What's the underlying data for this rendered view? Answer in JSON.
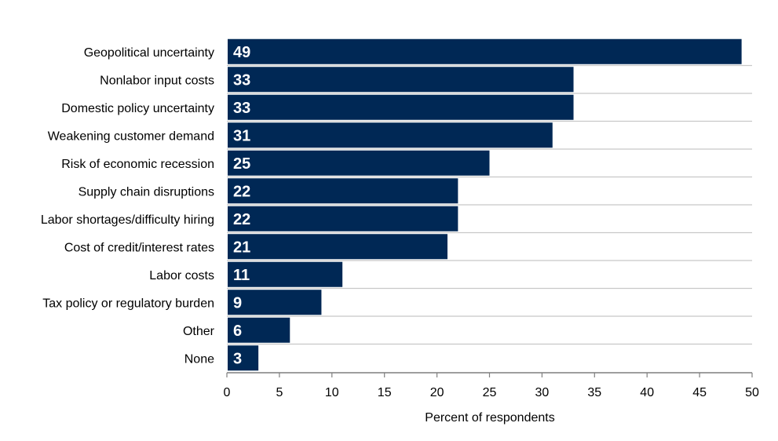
{
  "chart_data": {
    "type": "bar",
    "orientation": "horizontal",
    "title": "",
    "xlabel": "Percent of respondents",
    "ylabel": "",
    "xlim": [
      0,
      50
    ],
    "x_ticks": [
      0,
      5,
      10,
      15,
      20,
      25,
      30,
      35,
      40,
      45,
      50
    ],
    "x_tick_labels": [
      "0",
      "5",
      "10",
      "15",
      "20",
      "25",
      "30",
      "35",
      "40",
      "45",
      "50"
    ],
    "grid": "horizontal lines between categories",
    "legend": "none",
    "categories": [
      "Geopolitical uncertainty",
      "Nonlabor input costs",
      "Domestic policy uncertainty",
      "Weakening customer demand",
      "Risk of economic recession",
      "Supply chain disruptions",
      "Labor shortages/difficulty hiring",
      "Cost of credit/interest rates",
      "Labor costs",
      "Tax policy or regulatory burden",
      "Other",
      "None"
    ],
    "values": [
      49,
      33,
      33,
      31,
      25,
      22,
      22,
      21,
      11,
      9,
      6,
      3
    ],
    "data_labels": [
      "49",
      "33",
      "33",
      "31",
      "25",
      "22",
      "22",
      "21",
      "11",
      "9",
      "6",
      "3"
    ],
    "colors": {
      "bar": "#002855",
      "bar_label": "#ffffff",
      "grid": "#c8c8c8",
      "axis": "#7f7f7f",
      "text": "#000000"
    }
  }
}
